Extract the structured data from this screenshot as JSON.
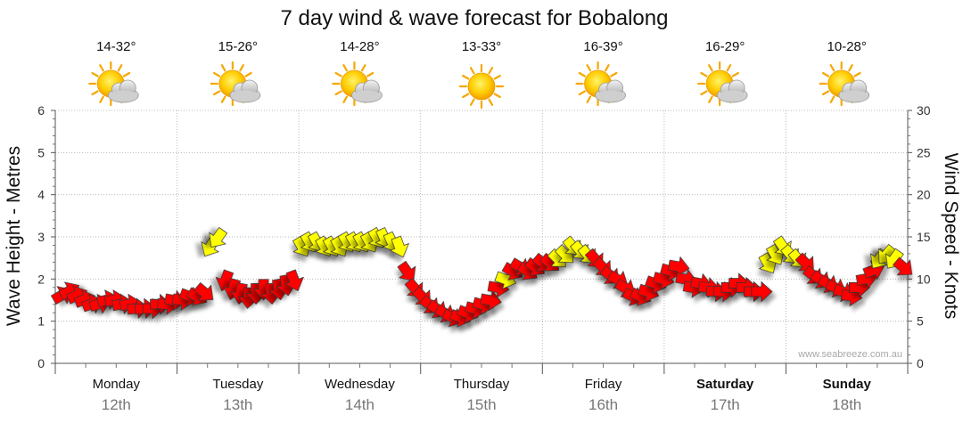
{
  "chart_data": {
    "type": "line",
    "title": "7 day wind & wave forecast for Bobalong",
    "ylabel_left": "Wave Height - Metres",
    "ylabel_right": "Wind Speed - Knots",
    "ylim_left": [
      0,
      6
    ],
    "ylim_right": [
      0,
      30
    ],
    "yticks_left": [
      "0",
      "1",
      "2",
      "3",
      "4",
      "5",
      "6"
    ],
    "yticks_right": [
      "0",
      "5",
      "10",
      "15",
      "20",
      "25",
      "30"
    ],
    "credit": "www.seabreeze.com.au",
    "days": [
      {
        "name": "Monday",
        "date": "12th",
        "temp": "14-32°",
        "icon": "partly-cloudy-icon",
        "bold": false
      },
      {
        "name": "Tuesday",
        "date": "13th",
        "temp": "15-26°",
        "icon": "partly-cloudy-icon",
        "bold": false
      },
      {
        "name": "Wednesday",
        "date": "14th",
        "temp": "14-28°",
        "icon": "partly-cloudy-icon",
        "bold": false
      },
      {
        "name": "Thursday",
        "date": "15th",
        "temp": "13-33°",
        "icon": "sunny-icon",
        "bold": false
      },
      {
        "name": "Friday",
        "date": "16th",
        "temp": "16-39°",
        "icon": "partly-cloudy-icon",
        "bold": false
      },
      {
        "name": "Saturday",
        "date": "17th",
        "temp": "16-29°",
        "icon": "partly-cloudy-icon",
        "bold": true
      },
      {
        "name": "Sunday",
        "date": "18th",
        "temp": "10-28°",
        "icon": "partly-cloudy-icon",
        "bold": true
      }
    ],
    "legend": {
      "warm_color": "#ffff00",
      "strong_color": "#ff0000",
      "outline": "#333333"
    },
    "wind_series": {
      "name": "Wind",
      "hours_offset_start": 0,
      "step_hours": 1.5,
      "knots": [
        8,
        8.5,
        8,
        7.5,
        7,
        7,
        7.5,
        7.5,
        7,
        7,
        6.5,
        6.5,
        6.5,
        7,
        7,
        7.5,
        7.5,
        8,
        8,
        8.5,
        14,
        15,
        10,
        9,
        8.5,
        8,
        8.5,
        9,
        8.5,
        9,
        9.5,
        10,
        14,
        14.5,
        14.5,
        14,
        14,
        14,
        14.5,
        14.5,
        14.5,
        14.5,
        15,
        15,
        14.5,
        14,
        11,
        9,
        8,
        7,
        6.5,
        6,
        5.5,
        5.5,
        6,
        6.5,
        7,
        7.5,
        9,
        10,
        11,
        11.5,
        11,
        11.5,
        12,
        12,
        12.5,
        13,
        14,
        13.5,
        13,
        12.5,
        11.5,
        10.5,
        10,
        9,
        8,
        8,
        8.5,
        9.5,
        10,
        11,
        11.5,
        10,
        9,
        9.5,
        9,
        8.5,
        8.5,
        9,
        9.5,
        9,
        8.5,
        8.5,
        12,
        13,
        14,
        13,
        12.5,
        12,
        10.5,
        10,
        9.5,
        9,
        8.5,
        8,
        9,
        10,
        11,
        12.5,
        13,
        12.5,
        11.5,
        10.5,
        11,
        12.5,
        13,
        12,
        11,
        10.5,
        10.5,
        11,
        9.5,
        9,
        8.5,
        8.5,
        8.5,
        8.5,
        8.5,
        9,
        9,
        10,
        10.5,
        12,
        13,
        13.5,
        14,
        14.5,
        15,
        15,
        15.5,
        16,
        12,
        9,
        7,
        6,
        5,
        4,
        3.5,
        3,
        3.5,
        4,
        5,
        7,
        8,
        8.5,
        8.5,
        8.5,
        8.5,
        8.5,
        9,
        10,
        11.5,
        12.5,
        11,
        10.5,
        9.5,
        8
      ],
      "colors": [
        "r",
        "r",
        "r",
        "r",
        "r",
        "r",
        "r",
        "r",
        "r",
        "r",
        "r",
        "r",
        "r",
        "r",
        "r",
        "r",
        "r",
        "r",
        "r",
        "r",
        "y",
        "y",
        "r",
        "r",
        "r",
        "r",
        "r",
        "r",
        "r",
        "r",
        "r",
        "r",
        "y",
        "y",
        "y",
        "y",
        "y",
        "y",
        "y",
        "y",
        "y",
        "y",
        "y",
        "y",
        "y",
        "y",
        "r",
        "r",
        "r",
        "r",
        "r",
        "r",
        "r",
        "r",
        "r",
        "r",
        "r",
        "r",
        "r",
        "y",
        "r",
        "r",
        "r",
        "r",
        "r",
        "r",
        "y",
        "y",
        "y",
        "y",
        "y",
        "r",
        "r",
        "r",
        "r",
        "r",
        "r",
        "r",
        "r",
        "r",
        "r",
        "r",
        "r",
        "r",
        "r",
        "r",
        "r",
        "r",
        "r",
        "r",
        "r",
        "r",
        "r",
        "r",
        "y",
        "y",
        "y",
        "y",
        "y",
        "r",
        "r",
        "r",
        "r",
        "r",
        "r",
        "r",
        "r",
        "r",
        "r",
        "y",
        "y",
        "y",
        "r",
        "r",
        "r",
        "r",
        "r",
        "r",
        "r",
        "r",
        "r",
        "r",
        "r",
        "r",
        "r",
        "r",
        "r",
        "r",
        "r",
        "r",
        "r",
        "y",
        "y",
        "y",
        "y",
        "y",
        "y",
        "y",
        "y",
        "y",
        "y",
        "y",
        "r",
        "r",
        "r",
        "r",
        "r",
        "r",
        "r",
        "r",
        "r",
        "r",
        "r",
        "r",
        "r",
        "r",
        "r",
        "r",
        "r",
        "r",
        "r",
        "r",
        "r",
        "r",
        "r",
        "r",
        "r",
        "r"
      ],
      "direction_deg": [
        60,
        60,
        65,
        70,
        70,
        75,
        75,
        80,
        80,
        80,
        85,
        85,
        90,
        90,
        95,
        100,
        100,
        110,
        120,
        130,
        210,
        215,
        200,
        195,
        190,
        185,
        180,
        180,
        175,
        170,
        170,
        160,
        150,
        150,
        150,
        150,
        150,
        150,
        150,
        150,
        150,
        150,
        150,
        155,
        155,
        160,
        145,
        140,
        135,
        130,
        125,
        120,
        115,
        110,
        110,
        105,
        105,
        100,
        100,
        110,
        120,
        120,
        125,
        125,
        130,
        130,
        135,
        135,
        140,
        140,
        140,
        140,
        135,
        130,
        120,
        120,
        115,
        115,
        110,
        110,
        105,
        105,
        100,
        100,
        100,
        100,
        95,
        95,
        95,
        90,
        90,
        90,
        90,
        90,
        150,
        150,
        145,
        140,
        140,
        135,
        130,
        125,
        120,
        115,
        110,
        100,
        90,
        80,
        70,
        215,
        220,
        215,
        130,
        125,
        120,
        115,
        110,
        105,
        100,
        95,
        90,
        90,
        80,
        80,
        80,
        80,
        80,
        80,
        85,
        85,
        90,
        140,
        140,
        140,
        140,
        140,
        140,
        140,
        140,
        140,
        140,
        140,
        150,
        160,
        170,
        180,
        190,
        200,
        210,
        200,
        190,
        180,
        170,
        150,
        140,
        140,
        140,
        140,
        140,
        140,
        140,
        150,
        160,
        170,
        170,
        170,
        170,
        170
      ]
    }
  }
}
